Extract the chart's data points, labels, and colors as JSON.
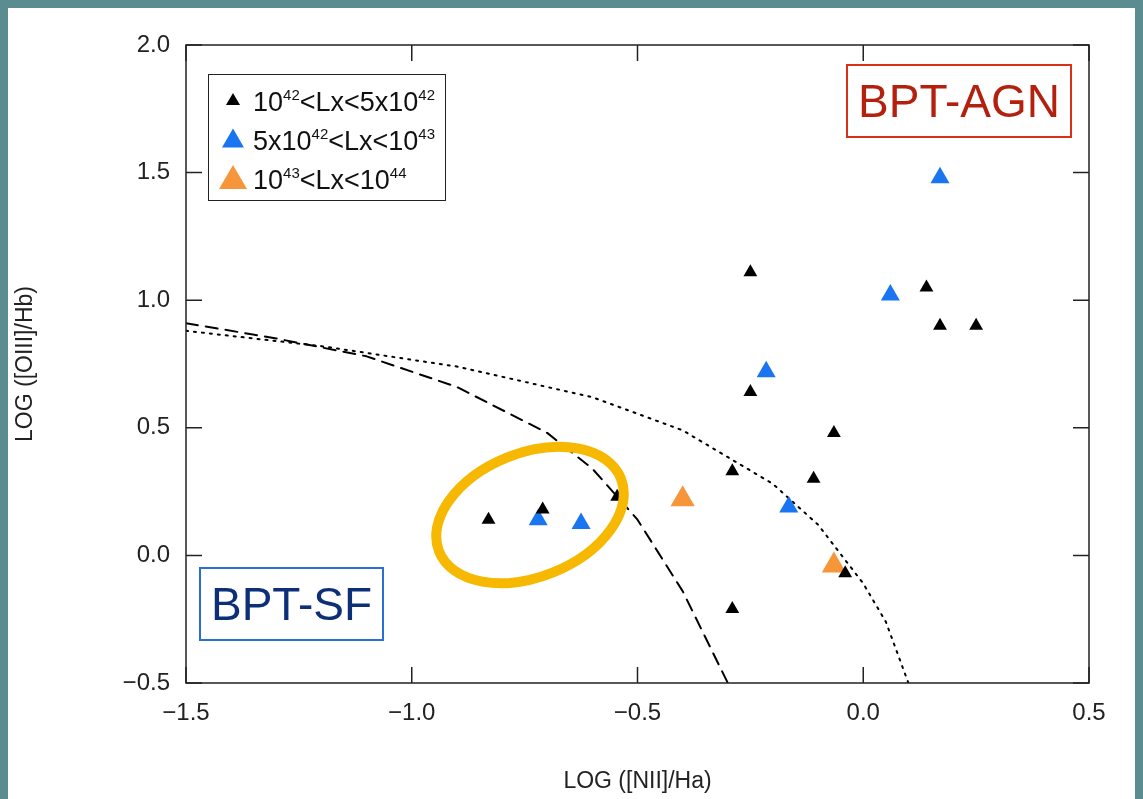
{
  "chart_data": {
    "type": "scatter",
    "xlabel": "LOG ([NII]/Ha)",
    "ylabel": "LOG ([OIII]/Hb)",
    "xlim": [
      -1.5,
      0.5
    ],
    "ylim": [
      -0.5,
      2.0
    ],
    "xticks": [
      {
        "value": -1.5,
        "label": "−1.5"
      },
      {
        "value": -1.0,
        "label": "−1.0"
      },
      {
        "value": -0.5,
        "label": "−0.5"
      },
      {
        "value": 0,
        "label": "0.0"
      },
      {
        "value": 0.5,
        "label": "0.5"
      }
    ],
    "yticks": [
      {
        "value": -0.5,
        "label": "−0.5"
      },
      {
        "value": 0,
        "label": "0.0"
      },
      {
        "value": 0.5,
        "label": "0.5"
      },
      {
        "value": 1.0,
        "label": "1.0"
      },
      {
        "value": 1.5,
        "label": "1.5"
      },
      {
        "value": 2.0,
        "label": "2.0"
      }
    ],
    "marker": "triangle",
    "legend": "top left",
    "annotations": [
      "BPT-AGN",
      "BPT-SF"
    ],
    "series": [
      {
        "name": "10$^{42}$<Lx<5x10$^{42}$",
        "color": "#000000",
        "x": [
          -0.83,
          -0.71,
          -0.545,
          -0.25,
          -0.25,
          -0.29,
          -0.29,
          -0.065,
          -0.11,
          -0.04,
          0.14,
          0.17,
          0.25
        ],
        "values": [
          0.14,
          0.18,
          0.23,
          1.11,
          0.64,
          0.33,
          -0.21,
          0.48,
          0.3,
          -0.07,
          1.05,
          0.9,
          0.9
        ]
      },
      {
        "name": "5x10$^{42}$<Lx<10$^{43}$",
        "color": "#1a75f0",
        "x": [
          -0.72,
          -0.625,
          -0.215,
          -0.165,
          0.06,
          0.17
        ],
        "values": [
          0.14,
          0.125,
          0.72,
          0.19,
          1.02,
          1.48
        ]
      },
      {
        "name": "10$^{43}$<Lx<10$^{44}$",
        "color": "#f7953a",
        "x": [
          -0.4,
          -0.065
        ],
        "values": [
          0.22,
          -0.04
        ]
      },
      {
        "type": "line",
        "line_style": "dashed",
        "marker": "none",
        "color": "#000000",
        "x": [
          -1.5,
          -1.3,
          -1.1,
          -0.9,
          -0.7,
          -0.6,
          -0.5,
          -0.4,
          -0.3
        ],
        "values": [
          0.91,
          0.85,
          0.78,
          0.66,
          0.48,
          0.34,
          0.14,
          -0.14,
          -0.5
        ]
      },
      {
        "type": "line",
        "line_style": "dotted",
        "marker": "none",
        "color": "#000000",
        "x": [
          -1.5,
          -1.2,
          -0.9,
          -0.6,
          -0.4,
          -0.2,
          -0.1,
          0.0,
          0.05,
          0.1
        ],
        "values": [
          0.88,
          0.82,
          0.74,
          0.62,
          0.49,
          0.28,
          0.12,
          -0.11,
          -0.26,
          -0.5
        ]
      }
    ]
  }
}
